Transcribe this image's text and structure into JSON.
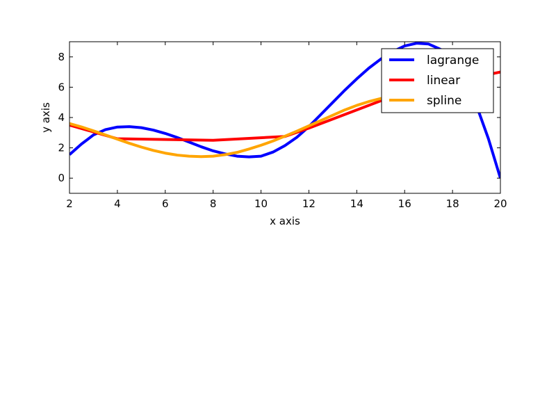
{
  "chart_data": {
    "type": "line",
    "title": "",
    "xlabel": "x axis",
    "ylabel": "y axis",
    "xlim": [
      2,
      20
    ],
    "ylim": [
      -1,
      9
    ],
    "xticks": [
      2,
      4,
      6,
      8,
      10,
      12,
      14,
      16,
      18,
      20
    ],
    "yticks": [
      0,
      2,
      4,
      6,
      8
    ],
    "grid": false,
    "legend_position": "top-right",
    "series": [
      {
        "name": "lagrange",
        "color": "#0000ff",
        "x": [
          2,
          2.5,
          3,
          3.5,
          4,
          4.5,
          5,
          5.5,
          6,
          6.5,
          7,
          7.5,
          8,
          8.5,
          9,
          9.5,
          10,
          10.5,
          11,
          11.5,
          12,
          12.5,
          13,
          13.5,
          14,
          14.5,
          15,
          15.5,
          16,
          16.5,
          17,
          17.5,
          18,
          18.5,
          19,
          19.5,
          20
        ],
        "y": [
          1.55,
          2.25,
          2.85,
          3.2,
          3.37,
          3.4,
          3.33,
          3.17,
          2.95,
          2.68,
          2.38,
          2.07,
          1.8,
          1.6,
          1.45,
          1.4,
          1.45,
          1.72,
          2.15,
          2.7,
          3.4,
          4.2,
          5.0,
          5.8,
          6.55,
          7.25,
          7.85,
          8.35,
          8.72,
          8.9,
          8.85,
          8.5,
          7.8,
          6.6,
          4.8,
          2.6,
          0.0
        ]
      },
      {
        "name": "linear",
        "color": "#ff0000",
        "x": [
          2,
          4,
          8,
          11,
          12,
          16,
          20
        ],
        "y": [
          3.5,
          2.6,
          2.5,
          2.75,
          3.3,
          5.7,
          7.0
        ]
      },
      {
        "name": "spline",
        "color": "#ffa500",
        "x": [
          2,
          2.5,
          3,
          3.5,
          4,
          4.5,
          5,
          5.5,
          6,
          6.5,
          7,
          7.5,
          8,
          8.5,
          9,
          9.5,
          10,
          10.5,
          11,
          11.5,
          12,
          12.5,
          13,
          13.5,
          14,
          14.5,
          15,
          15.5
        ],
        "y": [
          3.6,
          3.38,
          3.12,
          2.85,
          2.57,
          2.3,
          2.05,
          1.83,
          1.65,
          1.52,
          1.45,
          1.42,
          1.45,
          1.55,
          1.7,
          1.92,
          2.17,
          2.45,
          2.77,
          3.1,
          3.45,
          3.8,
          4.15,
          4.5,
          4.8,
          5.05,
          5.25,
          5.35
        ]
      }
    ]
  }
}
